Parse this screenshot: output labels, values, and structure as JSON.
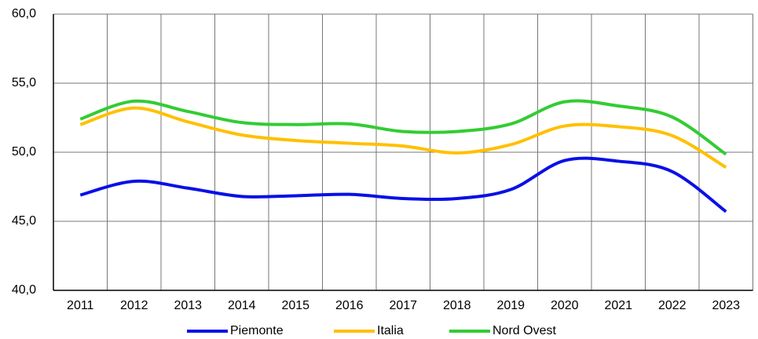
{
  "chart_data": {
    "type": "line",
    "categories": [
      "2011",
      "2012",
      "2013",
      "2014",
      "2015",
      "2016",
      "2017",
      "2018",
      "2019",
      "2020",
      "2021",
      "2022",
      "2023"
    ],
    "series": [
      {
        "name": "Piemonte",
        "color": "#0a10e6",
        "values": [
          46.9,
          47.9,
          47.4,
          46.8,
          46.85,
          46.95,
          46.65,
          46.65,
          47.3,
          49.4,
          49.35,
          48.6,
          45.7
        ]
      },
      {
        "name": "Italia",
        "color": "#ffc000",
        "values": [
          52.0,
          53.2,
          52.2,
          51.25,
          50.85,
          50.65,
          50.45,
          49.95,
          50.55,
          51.9,
          51.85,
          51.2,
          48.9
        ]
      },
      {
        "name": "Nord Ovest",
        "color": "#33cc33",
        "values": [
          52.4,
          53.7,
          52.95,
          52.15,
          52.0,
          52.05,
          51.5,
          51.5,
          52.05,
          53.65,
          53.35,
          52.55,
          49.85
        ]
      }
    ],
    "ylim": [
      40,
      60
    ],
    "yticks": [
      {
        "value": 40,
        "label": "40,0"
      },
      {
        "value": 45,
        "label": "45,0"
      },
      {
        "value": 50,
        "label": "50,0"
      },
      {
        "value": 55,
        "label": "55,0"
      },
      {
        "value": 60,
        "label": "60,0"
      }
    ],
    "grid": true,
    "legend": "bottom"
  }
}
